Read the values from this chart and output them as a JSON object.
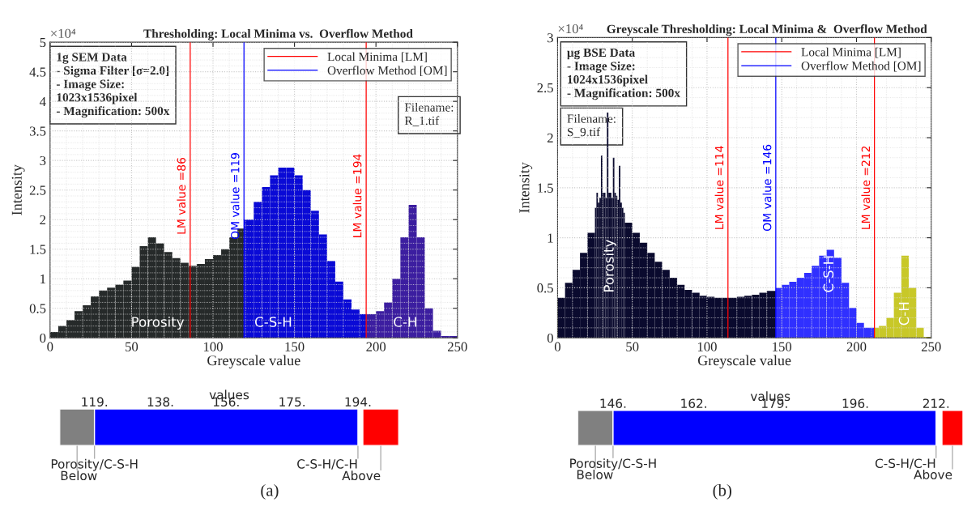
{
  "chart_data": [
    {
      "type": "histogram",
      "title": "Thresholding: Local Minima vs.  Overflow Method",
      "xlabel": "Greyscale value",
      "ylabel": "Intensity",
      "bins": [
        0,
        5,
        10,
        15,
        20,
        25,
        30,
        35,
        40,
        45,
        50,
        55,
        60,
        65,
        70,
        75,
        80,
        85,
        90,
        95,
        100,
        105,
        110,
        115,
        119,
        125,
        130,
        135,
        140,
        145,
        150,
        155,
        160,
        165,
        170,
        175,
        180,
        185,
        190,
        194,
        200,
        205,
        210,
        215,
        220,
        225,
        230,
        235,
        240,
        245,
        250
      ],
      "values": [
        0.1,
        0.2,
        0.3,
        0.45,
        0.55,
        0.7,
        0.8,
        0.85,
        0.9,
        0.97,
        1.2,
        1.55,
        1.7,
        1.6,
        1.45,
        1.35,
        1.27,
        1.22,
        1.25,
        1.33,
        1.4,
        1.5,
        1.7,
        1.85,
        2.0,
        2.3,
        2.55,
        2.75,
        2.88,
        2.88,
        2.75,
        2.5,
        2.15,
        1.75,
        1.3,
        0.95,
        0.65,
        0.48,
        0.4,
        0.4,
        0.45,
        0.6,
        1.0,
        1.7,
        2.25,
        1.7,
        0.5,
        0.12,
        0.03,
        0.03
      ],
      "colors": [
        "#262a2a",
        "#262a2a",
        "#262a2a",
        "#262a2a",
        "#262a2a",
        "#262a2a",
        "#262a2a",
        "#262a2a",
        "#262a2a",
        "#262a2a",
        "#262a2a",
        "#262a2a",
        "#262a2a",
        "#262a2a",
        "#262a2a",
        "#262a2a",
        "#262a2a",
        "#262a2a",
        "#262a2a",
        "#262a2a",
        "#262a2a",
        "#262a2a",
        "#262a2a",
        "#262a2a",
        "#0a0ad6",
        "#0a0ad6",
        "#0a0ad6",
        "#0a0ad6",
        "#0a0ad6",
        "#0a0ad6",
        "#0a0ad6",
        "#0a0ad6",
        "#0a0ad6",
        "#0a0ad6",
        "#0a0ad6",
        "#0a0ad6",
        "#0a0ad6",
        "#0a0ad6",
        "#0a0ad6",
        "#3c1ea0",
        "#3c1ea0",
        "#3c1ea0",
        "#3c1ea0",
        "#3c1ea0",
        "#3c1ea0",
        "#3c1ea0",
        "#3c1ea0",
        "#3c1ea0",
        "#3c1ea0",
        "#3c1ea0"
      ],
      "series": [
        {
          "name": "Local Minima [LM]",
          "type": "line",
          "color": "#ff0000",
          "x": [
            86,
            86
          ],
          "values": [
            0,
            5
          ]
        },
        {
          "type": "line",
          "color": "#ff0000",
          "x": [
            194,
            194
          ],
          "values": [
            0,
            5
          ]
        },
        {
          "name": "Overflow Method [OM]",
          "type": "line",
          "color": "#0000ff",
          "x": [
            119,
            119
          ],
          "values": [
            0,
            5
          ]
        }
      ],
      "xlim": [
        0,
        250
      ],
      "xticks": [
        0,
        50,
        100,
        150,
        200,
        250
      ],
      "ylim": [
        0,
        5
      ],
      "yticks": [
        0,
        0.5,
        1,
        1.5,
        2,
        2.5,
        3,
        3.5,
        4,
        4.5,
        5
      ],
      "grid": true,
      "legend": "top right",
      "annotations": [
        "×10⁴",
        "1g SEM Data\n- Sigma Filter [σ=2.0]\n- Image Size:\n1023x1536pixel\n- Magnification: 500x",
        "Filename:\nR_1.tif",
        {
          "text": "LM value =86",
          "x": 86,
          "y": 2.4
        },
        {
          "text": "OM value =119",
          "x": 119,
          "y": 2.4
        },
        {
          "text": "LM value =194",
          "x": 194,
          "y": 2.4
        },
        {
          "text": "Porosity",
          "x": 66,
          "y": 0.25
        },
        {
          "text": "C-S-H",
          "x": 137,
          "y": 0.25
        },
        {
          "text": "C-H",
          "x": 218,
          "y": 0.25
        }
      ]
    },
    {
      "type": "histogram",
      "title": "Greyscale Thresholding: Local Minima &  Overflow Method",
      "xlabel": "Greyscale value",
      "ylabel": "Intensity",
      "bins": [
        0,
        5,
        10,
        15,
        20,
        25,
        26,
        27,
        28,
        29,
        30,
        31,
        32,
        33,
        34,
        35,
        36,
        37,
        38,
        39,
        40,
        41,
        42,
        43,
        44,
        45,
        50,
        55,
        60,
        65,
        70,
        75,
        80,
        85,
        90,
        95,
        100,
        105,
        110,
        114,
        120,
        125,
        130,
        135,
        140,
        146,
        150,
        155,
        160,
        165,
        170,
        175,
        180,
        185,
        190,
        195,
        200,
        205,
        212,
        215,
        220,
        225,
        230,
        235,
        240,
        245,
        250
      ],
      "values": [
        0.4,
        0.55,
        0.68,
        0.85,
        1.05,
        1.3,
        1.45,
        1.35,
        1.4,
        1.82,
        1.45,
        1.45,
        1.4,
        2.25,
        1.45,
        1.45,
        1.4,
        1.8,
        1.45,
        1.42,
        1.38,
        1.72,
        1.35,
        1.3,
        1.25,
        1.15,
        1.05,
        0.95,
        0.85,
        0.76,
        0.68,
        0.6,
        0.53,
        0.48,
        0.45,
        0.42,
        0.41,
        0.4,
        0.4,
        0.4,
        0.41,
        0.42,
        0.43,
        0.45,
        0.47,
        0.5,
        0.53,
        0.56,
        0.6,
        0.65,
        0.72,
        0.82,
        0.88,
        0.8,
        0.55,
        0.3,
        0.15,
        0.1,
        0.1,
        0.12,
        0.2,
        0.45,
        0.82,
        0.5,
        0.1,
        0.01
      ],
      "colors": [
        "#0a0a2e",
        "#0a0a2e",
        "#0a0a2e",
        "#0a0a2e",
        "#0a0a2e",
        "#0a0a2e",
        "#0a0a2e",
        "#0a0a2e",
        "#0a0a2e",
        "#0a0a2e",
        "#0a0a2e",
        "#0a0a2e",
        "#0a0a2e",
        "#0a0a2e",
        "#0a0a2e",
        "#0a0a2e",
        "#0a0a2e",
        "#0a0a2e",
        "#0a0a2e",
        "#0a0a2e",
        "#0a0a2e",
        "#0a0a2e",
        "#0a0a2e",
        "#0a0a2e",
        "#0a0a2e",
        "#0a0a2e",
        "#0a0a2e",
        "#0a0a2e",
        "#0a0a2e",
        "#0a0a2e",
        "#0a0a2e",
        "#0a0a2e",
        "#0a0a2e",
        "#0a0a2e",
        "#0a0a2e",
        "#0a0a2e",
        "#0a0a2e",
        "#0a0a2e",
        "#0a0a2e",
        "#0a0a2e",
        "#0a0a2e",
        "#0a0a2e",
        "#0a0a2e",
        "#0a0a2e",
        "#0a0a2e",
        "#3030ff",
        "#3030ff",
        "#3030ff",
        "#3030ff",
        "#3030ff",
        "#3030ff",
        "#3030ff",
        "#3030ff",
        "#3030ff",
        "#3030ff",
        "#3030ff",
        "#3030ff",
        "#3030ff",
        "#c8c828",
        "#c8c828",
        "#c8c828",
        "#c8c828",
        "#c8c828",
        "#c8c828",
        "#c8c828",
        "#c8c828"
      ],
      "series": [
        {
          "name": "Local Minima [LM]",
          "type": "line",
          "color": "#ff0000",
          "x": [
            114,
            114
          ],
          "values": [
            0,
            3
          ]
        },
        {
          "type": "line",
          "color": "#ff0000",
          "x": [
            212,
            212
          ],
          "values": [
            0,
            3
          ]
        },
        {
          "name": "Overflow Method [OM]",
          "type": "line",
          "color": "#0000ff",
          "x": [
            146,
            146
          ],
          "values": [
            0,
            3
          ]
        }
      ],
      "xlim": [
        0,
        250
      ],
      "xticks": [
        0,
        50,
        100,
        150,
        200,
        250
      ],
      "ylim": [
        0,
        3
      ],
      "yticks": [
        0,
        0.5,
        1,
        1.5,
        2,
        2.5,
        3
      ],
      "grid": true,
      "legend": "top right",
      "annotations": [
        "×10⁴",
        "μg BSE Data\n- Image Size:\n1024x1536pixel\n- Magnification: 500x",
        "Filename:\nS_9.tif",
        {
          "text": "LM value =114",
          "x": 114,
          "y": 1.5
        },
        {
          "text": "OM value =146",
          "x": 146,
          "y": 1.5
        },
        {
          "text": "LM value =212",
          "x": 212,
          "y": 1.5
        },
        {
          "text": "Porosity",
          "x": 35,
          "y": 0.45
        },
        {
          "text": "C-S-H",
          "x": 182,
          "y": 0.45
        },
        {
          "text": "C-H",
          "x": 232.5,
          "y": 0.12
        }
      ]
    },
    {
      "type": "bar",
      "orientation": "horizontal",
      "categories": [
        null
      ],
      "series": [
        {
          "color": "#808080",
          "base": [
            109.1
          ],
          "values": [
            9.9
          ]
        },
        {
          "color": "#0000ff",
          "base": [
            119
          ],
          "values": [
            75
          ]
        },
        {
          "color": "#ff0000",
          "base": [
            195.4
          ],
          "values": [
            10.2
          ]
        }
      ],
      "xlabel": "values",
      "xlim": [
        109.1,
        205.6
      ],
      "xticks": [
        {
          "value": 119,
          "label": "119."
        },
        {
          "value": 137.75,
          "label": "138."
        },
        {
          "value": 156.5,
          "label": "156."
        },
        {
          "value": 175.25,
          "label": "175."
        },
        {
          "value": 194,
          "label": "194."
        }
      ],
      "annotations": [
        "Porosity/C-S-H",
        "Below",
        "C-S-H/C-H",
        "Above",
        "(a)"
      ]
    },
    {
      "type": "bar",
      "orientation": "horizontal",
      "categories": [
        null
      ],
      "series": [
        {
          "color": "#808080",
          "base": [
            138.8
          ],
          "values": [
            7.2
          ]
        },
        {
          "color": "#0000ff",
          "base": [
            146
          ],
          "values": [
            66
          ]
        },
        {
          "color": "#ff0000",
          "base": [
            213.2
          ],
          "values": [
            4.3
          ]
        }
      ],
      "xlabel": "values",
      "xlim": [
        138.8,
        217.5
      ],
      "xticks": [
        {
          "value": 146,
          "label": "146."
        },
        {
          "value": 162.5,
          "label": "162."
        },
        {
          "value": 179,
          "label": "179."
        },
        {
          "value": 195.5,
          "label": "196."
        },
        {
          "value": 212,
          "label": "212."
        }
      ],
      "annotations": [
        "Porosity/C-S-H",
        "Below",
        "C-S-H/C-H",
        "Above",
        "(b)"
      ]
    }
  ]
}
